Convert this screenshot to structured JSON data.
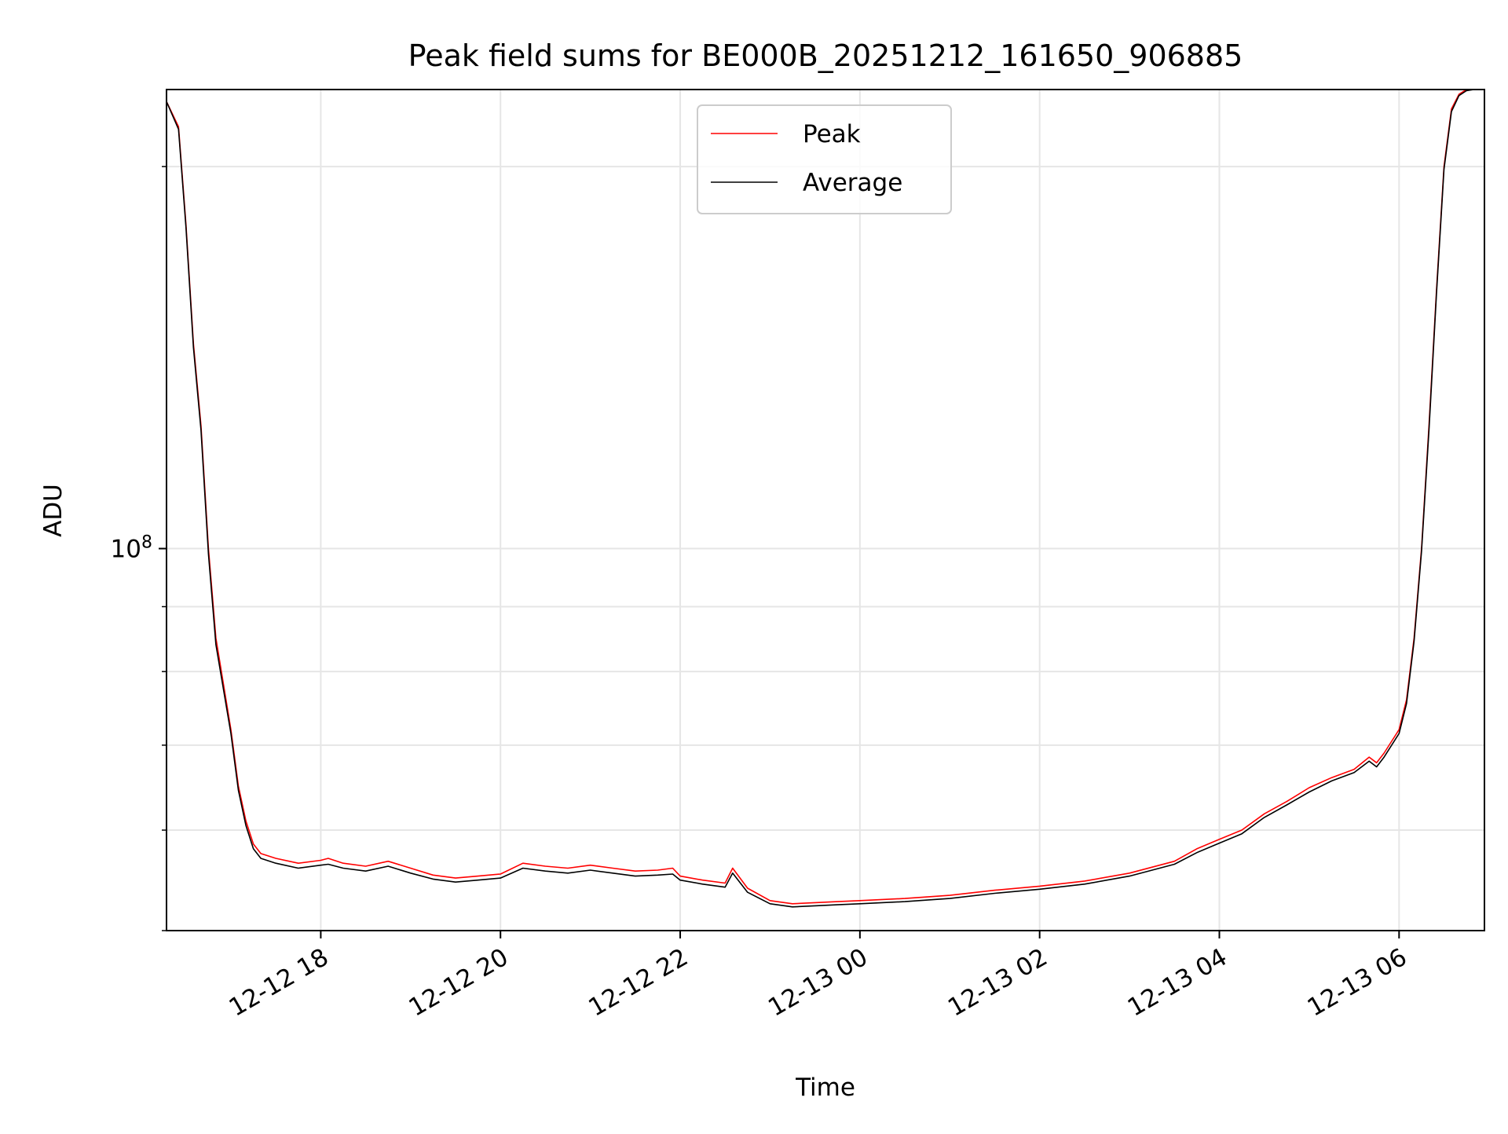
{
  "chart_data": {
    "type": "line",
    "title": "Peak field sums for BE000B_20251212_161650_906885",
    "xlabel": "Time",
    "ylabel": "ADU",
    "y_scale": "log",
    "xlim": [
      "2025-12-12 16:17",
      "2025-12-13 06:57"
    ],
    "ylim": [
      50000000,
      230000000
    ],
    "grid": true,
    "legend_position": "upper center",
    "x_tick_labels": [
      "12-12 18",
      "12-12 20",
      "12-12 22",
      "12-13 00",
      "12-13 02",
      "12-13 04",
      "12-13 06"
    ],
    "x_ticks": [
      "2025-12-12 18:00",
      "2025-12-12 20:00",
      "2025-12-12 22:00",
      "2025-12-13 00:00",
      "2025-12-13 02:00",
      "2025-12-13 04:00",
      "2025-12-13 06:00"
    ],
    "y_major_ticks": [
      100000000
    ],
    "y_major_tick_label": {
      "base": "10",
      "exponent": "8"
    },
    "y_minor_ticks": [
      50000000,
      60000000,
      70000000,
      80000000,
      90000000,
      200000000
    ],
    "series": [
      {
        "name": "Peak",
        "color": "#ff0000",
        "x": [
          "2025-12-12 16:17",
          "2025-12-12 16:25",
          "2025-12-12 16:30",
          "2025-12-12 16:35",
          "2025-12-12 16:40",
          "2025-12-12 16:45",
          "2025-12-12 16:50",
          "2025-12-12 17:00",
          "2025-12-12 17:05",
          "2025-12-12 17:10",
          "2025-12-12 17:15",
          "2025-12-12 17:20",
          "2025-12-12 17:30",
          "2025-12-12 17:45",
          "2025-12-12 18:00",
          "2025-12-12 18:05",
          "2025-12-12 18:15",
          "2025-12-12 18:30",
          "2025-12-12 18:45",
          "2025-12-12 19:00",
          "2025-12-12 19:15",
          "2025-12-12 19:30",
          "2025-12-12 19:45",
          "2025-12-12 20:00",
          "2025-12-12 20:15",
          "2025-12-12 20:30",
          "2025-12-12 20:45",
          "2025-12-12 21:00",
          "2025-12-12 21:15",
          "2025-12-12 21:30",
          "2025-12-12 21:45",
          "2025-12-12 21:55",
          "2025-12-12 22:00",
          "2025-12-12 22:15",
          "2025-12-12 22:30",
          "2025-12-12 22:35",
          "2025-12-12 22:45",
          "2025-12-12 23:00",
          "2025-12-12 23:15",
          "2025-12-12 23:30",
          "2025-12-12 23:45",
          "2025-12-13 00:00",
          "2025-12-13 00:30",
          "2025-12-13 01:00",
          "2025-12-13 01:30",
          "2025-12-13 02:00",
          "2025-12-13 02:30",
          "2025-12-13 03:00",
          "2025-12-13 03:30",
          "2025-12-13 03:45",
          "2025-12-13 04:00",
          "2025-12-13 04:15",
          "2025-12-13 04:30",
          "2025-12-13 04:45",
          "2025-12-13 05:00",
          "2025-12-13 05:15",
          "2025-12-13 05:30",
          "2025-12-13 05:40",
          "2025-12-13 05:45",
          "2025-12-13 05:50",
          "2025-12-13 06:00",
          "2025-12-13 06:05",
          "2025-12-13 06:10",
          "2025-12-13 06:15",
          "2025-12-13 06:20",
          "2025-12-13 06:25",
          "2025-12-13 06:30",
          "2025-12-13 06:35",
          "2025-12-13 06:40",
          "2025-12-13 06:45",
          "2025-12-13 06:50",
          "2025-12-13 06:57"
        ],
        "y": [
          225000000,
          215000000,
          180000000,
          145000000,
          125000000,
          100000000,
          85000000,
          72000000,
          65000000,
          61000000,
          58500000,
          57500000,
          57000000,
          56500000,
          56800000,
          57000000,
          56500000,
          56200000,
          56700000,
          56000000,
          55300000,
          55000000,
          55200000,
          55400000,
          56500000,
          56200000,
          56000000,
          56300000,
          56000000,
          55700000,
          55800000,
          56000000,
          55200000,
          54800000,
          54500000,
          56000000,
          54000000,
          52800000,
          52500000,
          52600000,
          52700000,
          52800000,
          53000000,
          53300000,
          53800000,
          54200000,
          54700000,
          55500000,
          56700000,
          58000000,
          59000000,
          60000000,
          61800000,
          63200000,
          64800000,
          66000000,
          67000000,
          68500000,
          67800000,
          69000000,
          72000000,
          76000000,
          85000000,
          100000000,
          125000000,
          160000000,
          200000000,
          222000000,
          228000000,
          230000000,
          230000000,
          230000000
        ]
      },
      {
        "name": "Average",
        "color": "#000000",
        "x": [
          "2025-12-12 16:17",
          "2025-12-12 16:25",
          "2025-12-12 16:30",
          "2025-12-12 16:35",
          "2025-12-12 16:40",
          "2025-12-12 16:45",
          "2025-12-12 16:50",
          "2025-12-12 17:00",
          "2025-12-12 17:05",
          "2025-12-12 17:10",
          "2025-12-12 17:15",
          "2025-12-12 17:20",
          "2025-12-12 17:30",
          "2025-12-12 17:45",
          "2025-12-12 18:00",
          "2025-12-12 18:05",
          "2025-12-12 18:15",
          "2025-12-12 18:30",
          "2025-12-12 18:45",
          "2025-12-12 19:00",
          "2025-12-12 19:15",
          "2025-12-12 19:30",
          "2025-12-12 19:45",
          "2025-12-12 20:00",
          "2025-12-12 20:15",
          "2025-12-12 20:30",
          "2025-12-12 20:45",
          "2025-12-12 21:00",
          "2025-12-12 21:15",
          "2025-12-12 21:30",
          "2025-12-12 21:45",
          "2025-12-12 21:55",
          "2025-12-12 22:00",
          "2025-12-12 22:15",
          "2025-12-12 22:30",
          "2025-12-12 22:35",
          "2025-12-12 22:45",
          "2025-12-12 23:00",
          "2025-12-12 23:15",
          "2025-12-12 23:30",
          "2025-12-12 23:45",
          "2025-12-13 00:00",
          "2025-12-13 00:30",
          "2025-12-13 01:00",
          "2025-12-13 01:30",
          "2025-12-13 02:00",
          "2025-12-13 02:30",
          "2025-12-13 03:00",
          "2025-12-13 03:30",
          "2025-12-13 03:45",
          "2025-12-13 04:00",
          "2025-12-13 04:15",
          "2025-12-13 04:30",
          "2025-12-13 04:45",
          "2025-12-13 05:00",
          "2025-12-13 05:15",
          "2025-12-13 05:30",
          "2025-12-13 05:40",
          "2025-12-13 05:45",
          "2025-12-13 05:50",
          "2025-12-13 06:00",
          "2025-12-13 06:05",
          "2025-12-13 06:10",
          "2025-12-13 06:15",
          "2025-12-13 06:20",
          "2025-12-13 06:25",
          "2025-12-13 06:30",
          "2025-12-13 06:35",
          "2025-12-13 06:40",
          "2025-12-13 06:45",
          "2025-12-13 06:50",
          "2025-12-13 06:57"
        ],
        "y": [
          225000000,
          214000000,
          179000000,
          144000000,
          124000000,
          99000000,
          84000000,
          71500000,
          64500000,
          60500000,
          58000000,
          57000000,
          56500000,
          56000000,
          56300000,
          56400000,
          56000000,
          55700000,
          56200000,
          55500000,
          54900000,
          54600000,
          54800000,
          55000000,
          56000000,
          55700000,
          55500000,
          55800000,
          55500000,
          55200000,
          55300000,
          55400000,
          54800000,
          54400000,
          54100000,
          55500000,
          53600000,
          52500000,
          52200000,
          52300000,
          52400000,
          52500000,
          52700000,
          53000000,
          53500000,
          53900000,
          54400000,
          55200000,
          56400000,
          57600000,
          58600000,
          59600000,
          61400000,
          62800000,
          64300000,
          65600000,
          66600000,
          68000000,
          67300000,
          68500000,
          71500000,
          75500000,
          84500000,
          99500000,
          124000000,
          159000000,
          199000000,
          221000000,
          227500000,
          229500000,
          230000000,
          230000000
        ]
      }
    ]
  }
}
